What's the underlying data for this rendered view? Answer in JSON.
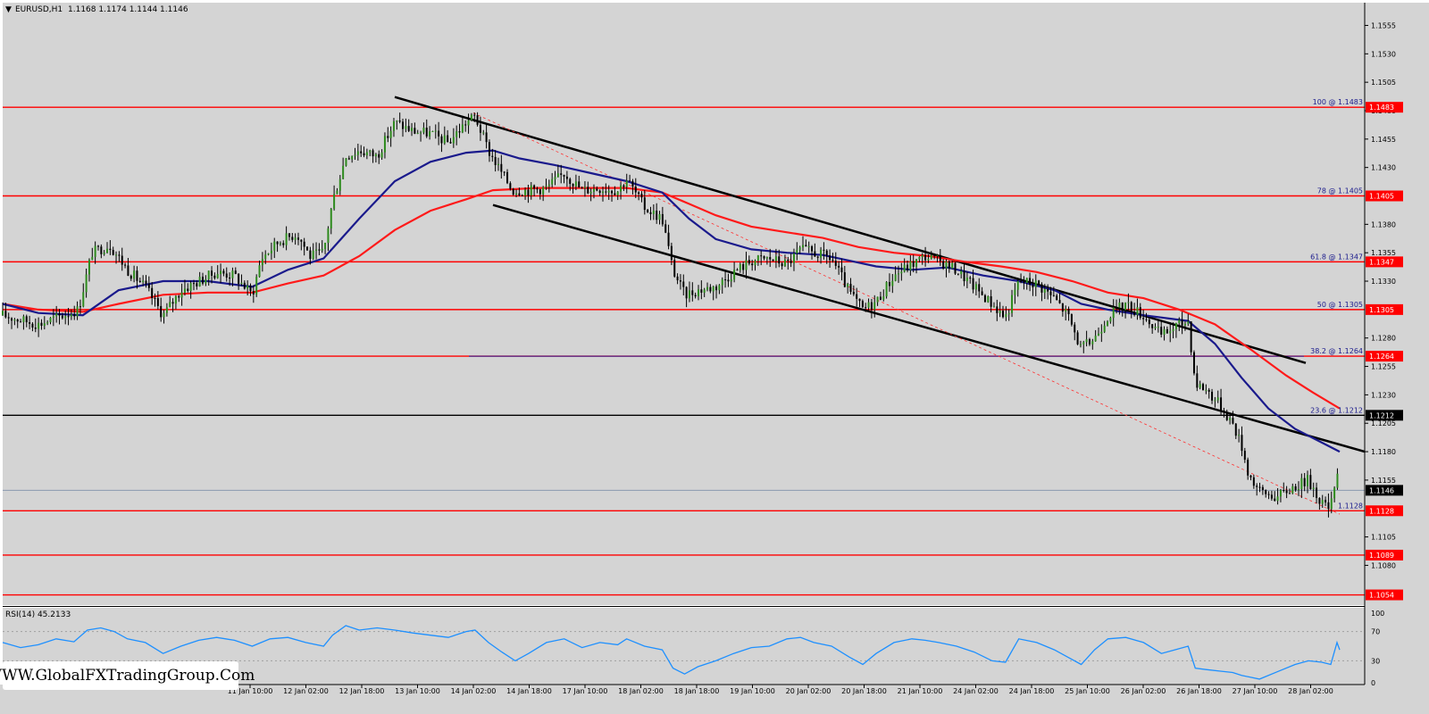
{
  "header": {
    "symbol_tf": "EURUSD,H1",
    "ohlc": "1.1168 1.1174 1.1144 1.1146"
  },
  "rsi_label": "RSI(14) 45.2133",
  "watermark": "WWW.GlobalFXTradingGroup.Com",
  "colors": {
    "background": "#d4d4d4",
    "up_candle": "#2e8b1e",
    "down_candle": "#000000",
    "level_line": "#ff0000",
    "ma_fast": "#1a1a8c",
    "ma_slow": "#ff1a1a",
    "rsi_line": "#1e90ff",
    "trend_line": "#000000"
  },
  "chart_data": {
    "type": "candlestick",
    "symbol": "EURUSD",
    "timeframe": "H1",
    "y_axis": {
      "range": [
        1.1045,
        1.1575
      ],
      "ticks": [
        "1.1555",
        "1.1530",
        "1.1505",
        "1.1480",
        "1.1455",
        "1.1430",
        "1.1380",
        "1.1355",
        "1.1330",
        "1.1280",
        "1.1255",
        "1.1230",
        "1.1205",
        "1.1180",
        "1.1155",
        "1.1105",
        "1.1080"
      ]
    },
    "x_axis": {
      "ticks": [
        "11 Jan 10:00",
        "12 Jan 02:00",
        "12 Jan 18:00",
        "13 Jan 10:00",
        "14 Jan 02:00",
        "14 Jan 18:00",
        "17 Jan 10:00",
        "18 Jan 02:00",
        "18 Jan 18:00",
        "19 Jan 10:00",
        "20 Jan 02:00",
        "20 Jan 18:00",
        "21 Jan 10:00",
        "24 Jan 02:00",
        "24 Jan 18:00",
        "25 Jan 10:00",
        "26 Jan 02:00",
        "26 Jan 18:00",
        "27 Jan 10:00",
        "28 Jan 02:00"
      ]
    },
    "fib_levels": [
      {
        "label": "100 @ 1.1483",
        "tag": "1.1483",
        "value": 1.1483
      },
      {
        "label": "78 @ 1.1405",
        "tag": "1.1405",
        "value": 1.1405
      },
      {
        "label": "61.8 @ 1.1347",
        "tag": "1.1347",
        "value": 1.1347
      },
      {
        "label": "50 @ 1.1305",
        "tag": "1.1305",
        "value": 1.1305
      },
      {
        "label": "38.2 @ 1.1264",
        "tag": "1.1264",
        "value": 1.1264
      },
      {
        "label": "23.6 @ 1.1212",
        "tag": "1.1212",
        "value": 1.1212
      }
    ],
    "other_levels": [
      {
        "tag": "1.1128",
        "value": 1.1128
      },
      {
        "tag": "1.1089",
        "value": 1.1089
      },
      {
        "tag": "1.1054",
        "value": 1.1054
      }
    ],
    "current_price": {
      "tag": "1.1146",
      "value": 1.1146
    },
    "low_marker": {
      "label": "1.1128",
      "value": 1.1128
    },
    "close_path": [
      [
        0,
        1.13
      ],
      [
        40,
        1.1292
      ],
      [
        85,
        1.1305
      ],
      [
        100,
        1.1355
      ],
      [
        120,
        1.1362
      ],
      [
        140,
        1.134
      ],
      [
        160,
        1.1325
      ],
      [
        180,
        1.13
      ],
      [
        200,
        1.1322
      ],
      [
        220,
        1.133
      ],
      [
        240,
        1.1338
      ],
      [
        260,
        1.1335
      ],
      [
        280,
        1.1318
      ],
      [
        290,
        1.135
      ],
      [
        310,
        1.1365
      ],
      [
        330,
        1.1372
      ],
      [
        345,
        1.1352
      ],
      [
        360,
        1.1355
      ],
      [
        370,
        1.14
      ],
      [
        385,
        1.144
      ],
      [
        400,
        1.1445
      ],
      [
        420,
        1.144
      ],
      [
        440,
        1.147
      ],
      [
        460,
        1.1462
      ],
      [
        480,
        1.146
      ],
      [
        500,
        1.1452
      ],
      [
        520,
        1.147
      ],
      [
        530,
        1.1475
      ],
      [
        545,
        1.1445
      ],
      [
        560,
        1.1425
      ],
      [
        572,
        1.141
      ],
      [
        590,
        1.141
      ],
      [
        610,
        1.1412
      ],
      [
        630,
        1.1425
      ],
      [
        650,
        1.141
      ],
      [
        670,
        1.1412
      ],
      [
        690,
        1.141
      ],
      [
        700,
        1.142
      ],
      [
        720,
        1.1395
      ],
      [
        740,
        1.1385
      ],
      [
        752,
        1.134
      ],
      [
        765,
        1.1318
      ],
      [
        780,
        1.1322
      ],
      [
        800,
        1.1325
      ],
      [
        820,
        1.1338
      ],
      [
        840,
        1.1348
      ],
      [
        860,
        1.135
      ],
      [
        880,
        1.1345
      ],
      [
        895,
        1.1358
      ],
      [
        910,
        1.1355
      ],
      [
        930,
        1.135
      ],
      [
        950,
        1.132
      ],
      [
        965,
        1.1305
      ],
      [
        980,
        1.1312
      ],
      [
        1000,
        1.1335
      ],
      [
        1020,
        1.1345
      ],
      [
        1035,
        1.1352
      ],
      [
        1050,
        1.1348
      ],
      [
        1070,
        1.134
      ],
      [
        1090,
        1.1325
      ],
      [
        1110,
        1.131
      ],
      [
        1125,
        1.1298
      ],
      [
        1140,
        1.133
      ],
      [
        1160,
        1.1328
      ],
      [
        1180,
        1.1315
      ],
      [
        1195,
        1.13
      ],
      [
        1210,
        1.127
      ],
      [
        1225,
        1.128
      ],
      [
        1240,
        1.13
      ],
      [
        1260,
        1.131
      ],
      [
        1280,
        1.13
      ],
      [
        1300,
        1.1282
      ],
      [
        1315,
        1.129
      ],
      [
        1330,
        1.1295
      ],
      [
        1338,
        1.124
      ],
      [
        1350,
        1.1235
      ],
      [
        1365,
        1.1222
      ],
      [
        1380,
        1.1205
      ],
      [
        1390,
        1.1185
      ],
      [
        1398,
        1.116
      ],
      [
        1410,
        1.1145
      ],
      [
        1430,
        1.114
      ],
      [
        1450,
        1.115
      ],
      [
        1465,
        1.1155
      ],
      [
        1480,
        1.1135
      ],
      [
        1490,
        1.113
      ],
      [
        1497,
        1.1168
      ],
      [
        1500,
        1.1146
      ]
    ],
    "ma_fast": [
      [
        0,
        1.131
      ],
      [
        40,
        1.1302
      ],
      [
        90,
        1.13
      ],
      [
        130,
        1.1322
      ],
      [
        180,
        1.133
      ],
      [
        230,
        1.133
      ],
      [
        280,
        1.1325
      ],
      [
        320,
        1.134
      ],
      [
        360,
        1.135
      ],
      [
        400,
        1.1385
      ],
      [
        440,
        1.1418
      ],
      [
        480,
        1.1435
      ],
      [
        520,
        1.1443
      ],
      [
        550,
        1.1445
      ],
      [
        580,
        1.1438
      ],
      [
        620,
        1.1432
      ],
      [
        660,
        1.1425
      ],
      [
        700,
        1.1418
      ],
      [
        740,
        1.1408
      ],
      [
        770,
        1.1385
      ],
      [
        800,
        1.1367
      ],
      [
        840,
        1.1358
      ],
      [
        880,
        1.1355
      ],
      [
        920,
        1.1353
      ],
      [
        950,
        1.1348
      ],
      [
        980,
        1.1343
      ],
      [
        1020,
        1.134
      ],
      [
        1060,
        1.1342
      ],
      [
        1100,
        1.1335
      ],
      [
        1140,
        1.133
      ],
      [
        1180,
        1.1322
      ],
      [
        1210,
        1.131
      ],
      [
        1240,
        1.1305
      ],
      [
        1280,
        1.13
      ],
      [
        1330,
        1.1295
      ],
      [
        1360,
        1.1275
      ],
      [
        1390,
        1.1245
      ],
      [
        1420,
        1.1218
      ],
      [
        1450,
        1.12
      ],
      [
        1480,
        1.1188
      ],
      [
        1500,
        1.118
      ]
    ],
    "ma_slow": [
      [
        0,
        1.131
      ],
      [
        40,
        1.1305
      ],
      [
        90,
        1.1303
      ],
      [
        130,
        1.131
      ],
      [
        180,
        1.1318
      ],
      [
        230,
        1.132
      ],
      [
        280,
        1.132
      ],
      [
        320,
        1.1328
      ],
      [
        360,
        1.1335
      ],
      [
        400,
        1.1352
      ],
      [
        440,
        1.1375
      ],
      [
        480,
        1.1392
      ],
      [
        520,
        1.1402
      ],
      [
        550,
        1.141
      ],
      [
        600,
        1.1412
      ],
      [
        660,
        1.1412
      ],
      [
        700,
        1.1412
      ],
      [
        740,
        1.1408
      ],
      [
        770,
        1.1398
      ],
      [
        800,
        1.1388
      ],
      [
        840,
        1.1378
      ],
      [
        880,
        1.1373
      ],
      [
        920,
        1.1368
      ],
      [
        960,
        1.136
      ],
      [
        1000,
        1.1355
      ],
      [
        1040,
        1.1352
      ],
      [
        1080,
        1.1347
      ],
      [
        1120,
        1.1343
      ],
      [
        1160,
        1.1338
      ],
      [
        1200,
        1.133
      ],
      [
        1240,
        1.132
      ],
      [
        1280,
        1.1315
      ],
      [
        1320,
        1.1305
      ],
      [
        1360,
        1.1292
      ],
      [
        1400,
        1.127
      ],
      [
        1440,
        1.1247
      ],
      [
        1470,
        1.1232
      ],
      [
        1500,
        1.1218
      ]
    ],
    "trend_lines": [
      {
        "name": "channel-upper",
        "points": [
          [
            442,
            1.1492
          ],
          [
            1462,
            1.1258
          ]
        ]
      },
      {
        "name": "channel-lower",
        "points": [
          [
            552,
            1.1397
          ],
          [
            1528,
            1.118
          ]
        ]
      },
      {
        "name": "dashed-projection",
        "points": [
          [
            530,
            1.1478
          ],
          [
            1500,
            1.1125
          ]
        ]
      }
    ],
    "rsi": {
      "value": 45.2133,
      "levels": [
        70,
        30
      ],
      "scale_labels": [
        "100",
        "70",
        "30",
        "0"
      ],
      "points": [
        [
          0,
          55
        ],
        [
          20,
          48
        ],
        [
          40,
          52
        ],
        [
          60,
          60
        ],
        [
          80,
          56
        ],
        [
          95,
          72
        ],
        [
          110,
          75
        ],
        [
          125,
          70
        ],
        [
          140,
          60
        ],
        [
          160,
          55
        ],
        [
          180,
          40
        ],
        [
          200,
          50
        ],
        [
          220,
          58
        ],
        [
          240,
          62
        ],
        [
          260,
          58
        ],
        [
          280,
          50
        ],
        [
          300,
          60
        ],
        [
          320,
          62
        ],
        [
          340,
          55
        ],
        [
          360,
          50
        ],
        [
          370,
          65
        ],
        [
          385,
          78
        ],
        [
          400,
          72
        ],
        [
          420,
          75
        ],
        [
          440,
          72
        ],
        [
          460,
          68
        ],
        [
          480,
          65
        ],
        [
          500,
          62
        ],
        [
          520,
          70
        ],
        [
          530,
          72
        ],
        [
          545,
          55
        ],
        [
          560,
          42
        ],
        [
          575,
          30
        ],
        [
          590,
          40
        ],
        [
          610,
          55
        ],
        [
          630,
          60
        ],
        [
          650,
          48
        ],
        [
          670,
          55
        ],
        [
          690,
          52
        ],
        [
          700,
          60
        ],
        [
          720,
          50
        ],
        [
          740,
          45
        ],
        [
          752,
          20
        ],
        [
          765,
          12
        ],
        [
          780,
          22
        ],
        [
          800,
          30
        ],
        [
          820,
          40
        ],
        [
          840,
          48
        ],
        [
          860,
          50
        ],
        [
          880,
          60
        ],
        [
          895,
          62
        ],
        [
          910,
          55
        ],
        [
          930,
          50
        ],
        [
          950,
          35
        ],
        [
          965,
          25
        ],
        [
          980,
          40
        ],
        [
          1000,
          55
        ],
        [
          1020,
          60
        ],
        [
          1035,
          58
        ],
        [
          1050,
          55
        ],
        [
          1070,
          50
        ],
        [
          1090,
          42
        ],
        [
          1110,
          30
        ],
        [
          1125,
          28
        ],
        [
          1140,
          60
        ],
        [
          1160,
          55
        ],
        [
          1180,
          45
        ],
        [
          1195,
          35
        ],
        [
          1210,
          25
        ],
        [
          1225,
          45
        ],
        [
          1240,
          60
        ],
        [
          1260,
          62
        ],
        [
          1280,
          55
        ],
        [
          1300,
          40
        ],
        [
          1315,
          45
        ],
        [
          1330,
          50
        ],
        [
          1338,
          20
        ],
        [
          1350,
          18
        ],
        [
          1365,
          16
        ],
        [
          1380,
          14
        ],
        [
          1390,
          10
        ],
        [
          1398,
          8
        ],
        [
          1410,
          5
        ],
        [
          1430,
          15
        ],
        [
          1450,
          25
        ],
        [
          1465,
          30
        ],
        [
          1480,
          28
        ],
        [
          1490,
          25
        ],
        [
          1497,
          55
        ],
        [
          1500,
          45
        ]
      ]
    }
  }
}
